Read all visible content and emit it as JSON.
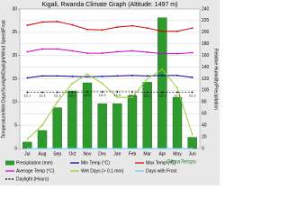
{
  "chart_data": {
    "type": "bar",
    "title": "Kigali, Rwanda Climate Graph (Altitude: 1497 m)",
    "y_label": "Temperature/Wet Days/Sunlight/Daylight/Wind Speed/Frost",
    "y2_label": "Relative Humidity/Precipitation",
    "brand": "ClimaTemps",
    "categories": [
      "Jul",
      "Aug",
      "Sep",
      "Oct",
      "Nov",
      "Dec",
      "Jan",
      "Feb",
      "Mar",
      "Apr",
      "May",
      "Jun"
    ],
    "ylim": [
      0,
      30
    ],
    "yticks": [
      0,
      5,
      10,
      15,
      20,
      25,
      30
    ],
    "y2lim": [
      0,
      240
    ],
    "y2ticks": [
      0,
      20,
      40,
      60,
      80,
      100,
      120,
      140,
      160,
      180,
      200,
      220,
      240
    ],
    "grid": true,
    "series": [
      {
        "name": "Precipitation (mm)",
        "type": "bar",
        "axis": "y2",
        "color": "#2e9a2e",
        "values": [
          11,
          31,
          70,
          99,
          113,
          77,
          77,
          91,
          114,
          225,
          88,
          19
        ]
      },
      {
        "name": "Min Temp (°C)",
        "type": "line",
        "color": "#000099",
        "values": [
          15.2,
          15.6,
          15.6,
          15.5,
          15.4,
          15.5,
          15.6,
          15.7,
          15.6,
          15.7,
          15.7,
          15.3
        ]
      },
      {
        "name": "Max Temp (°C)",
        "type": "line",
        "color": "#cc0000",
        "values": [
          26.5,
          27.2,
          27.3,
          26.6,
          25.6,
          25.5,
          26.1,
          26.4,
          25.9,
          25.2,
          25.2,
          25.9
        ]
      },
      {
        "name": "Average Temp (°C)",
        "type": "line",
        "color": "#cc00cc",
        "values": [
          20.8,
          21.4,
          21.4,
          21.0,
          20.5,
          20.5,
          20.8,
          21.0,
          20.7,
          20.4,
          20.4,
          20.6
        ]
      },
      {
        "name": "Wet Days (> 0.1 mm)",
        "type": "line",
        "color": "#99cc33",
        "values": [
          2,
          5,
          10,
          14,
          16,
          14,
          11,
          11,
          15,
          17,
          13,
          3
        ]
      },
      {
        "name": "Days with Frost",
        "type": "line",
        "color": "#66ccff",
        "values": [
          0,
          0,
          0,
          0,
          0,
          0,
          0,
          0,
          0,
          0,
          0,
          0
        ]
      },
      {
        "name": "Daylight (Hours)",
        "type": "line",
        "color": "#000000",
        "dashed": true,
        "labels": true,
        "values": [
          12.1,
          12.1,
          12.1,
          12.1,
          12.2,
          12.2,
          12.2,
          12.2,
          12.1,
          12.1,
          12.1,
          12.1
        ]
      }
    ]
  }
}
